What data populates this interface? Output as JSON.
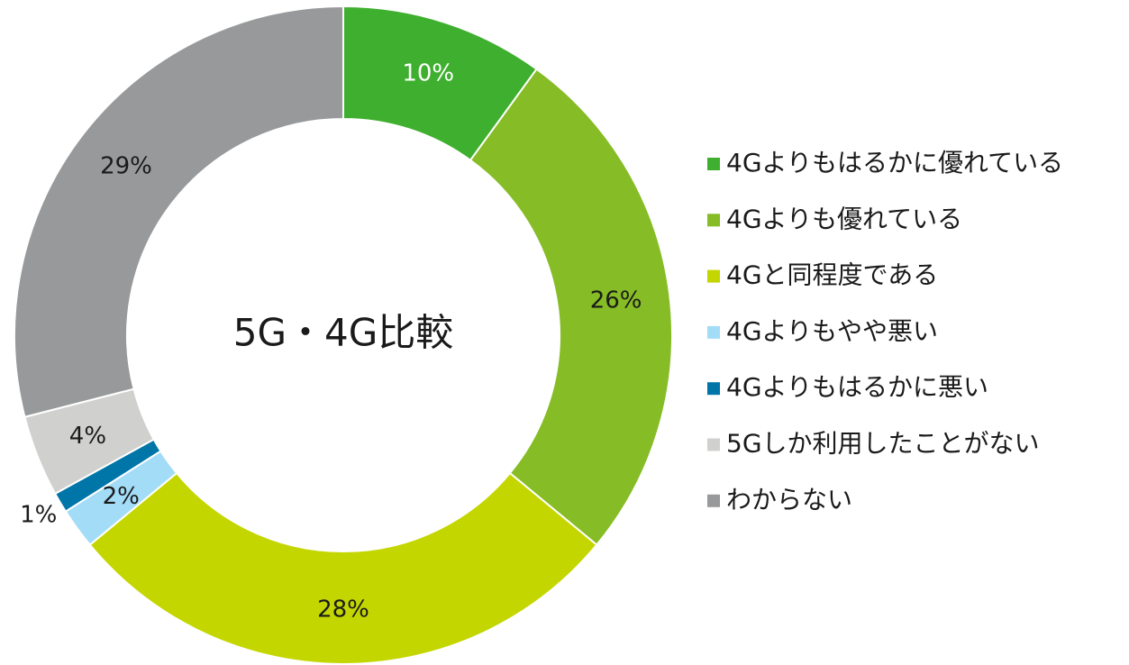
{
  "chart_data": {
    "type": "donut",
    "title": "5G・4G比較",
    "categories": [
      "4Gよりもはるかに優れている",
      "4Gよりも優れている",
      "4Gと同程度である",
      "4Gよりもやや悪い",
      "4Gよりもはるかに悪い",
      "5Gしか利用したことがない",
      "わからない"
    ],
    "values": [
      10,
      26,
      28,
      2,
      1,
      4,
      29
    ],
    "value_labels": [
      "10%",
      "26%",
      "28%",
      "2%",
      "1%",
      "4%",
      "29%"
    ],
    "colors": [
      "#3faf2f",
      "#86bc25",
      "#c4d600",
      "#a3dcf7",
      "#0076a8",
      "#d0d0ce",
      "#97999b"
    ],
    "legend": "right"
  }
}
